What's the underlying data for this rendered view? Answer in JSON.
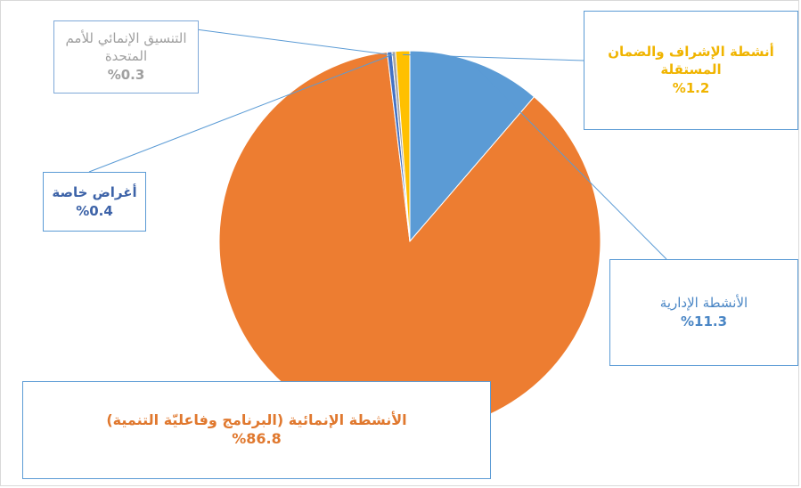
{
  "chart_data": {
    "type": "pie",
    "title": "",
    "slices": [
      {
        "label": "الأنشطة الإدارية",
        "value": 11.3,
        "display": "%11.3",
        "color": "#5b9bd5",
        "text_color": "#4a86c5"
      },
      {
        "label": "الأنشطة الإنمائية (البرنامج وفاعليّة التنمية)",
        "value": 86.8,
        "display": "%86.8",
        "color": "#ed7d31",
        "text_color": "#e0782e"
      },
      {
        "label": "أغراض خاصة",
        "value": 0.4,
        "display": "%0.4",
        "color": "#4472c4",
        "text_color": "#3d63a8"
      },
      {
        "label": "التنسيق الإنمائي للأمم المتحدة",
        "value": 0.3,
        "display": "%0.3",
        "color": "#a5a5a5",
        "text_color": "#a0a0a0"
      },
      {
        "label": "أنشطة الإشراف والضمان المستقلة",
        "value": 1.2,
        "display": "%1.2",
        "color": "#ffc000",
        "text_color": "#f0b400"
      }
    ]
  }
}
